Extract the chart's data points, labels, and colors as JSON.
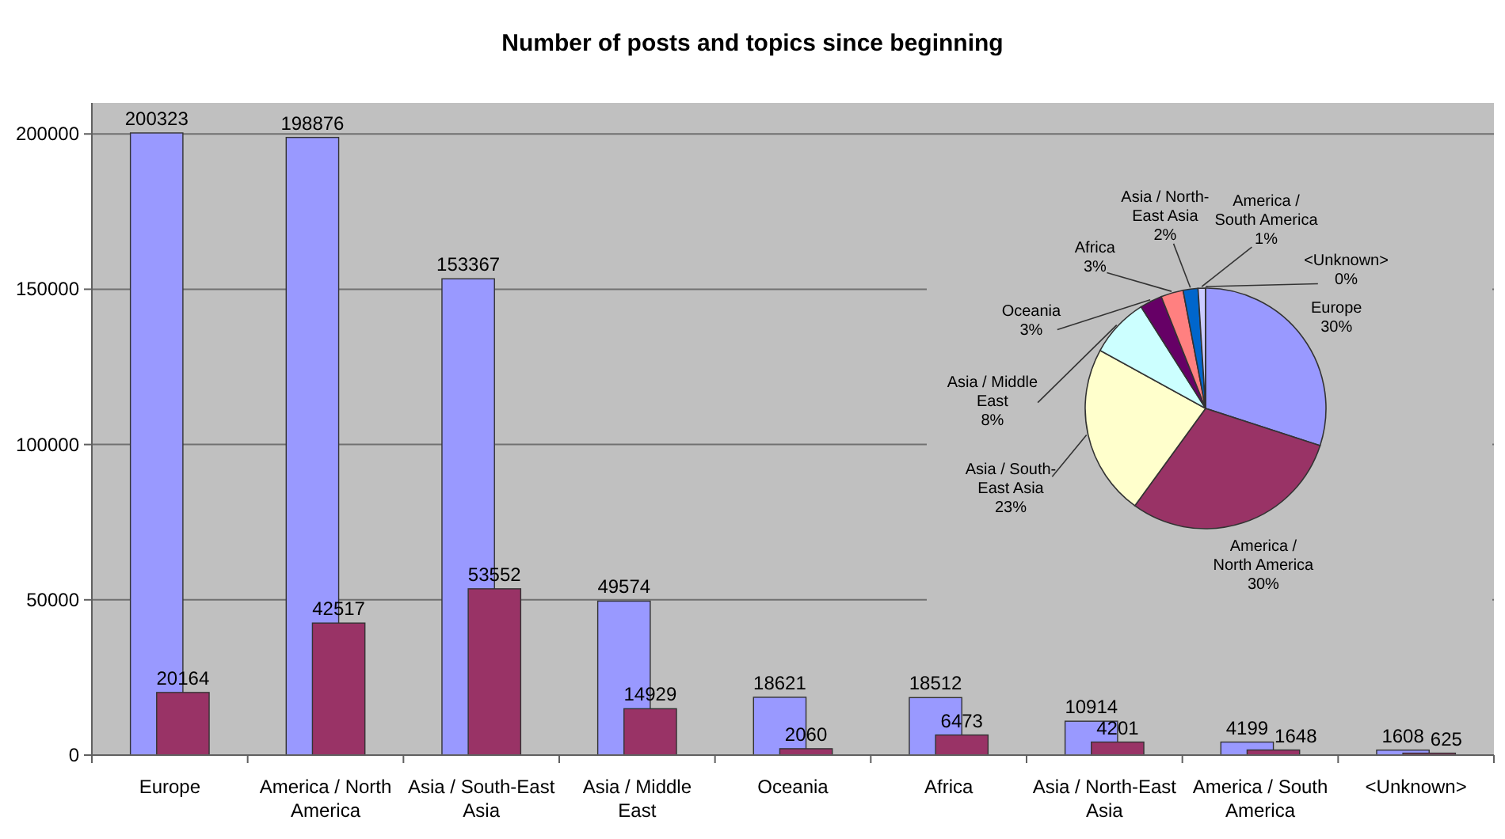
{
  "chart_data": [
    {
      "type": "bar",
      "title": "Number of posts and topics since beginning",
      "categories": [
        "Europe",
        "America / North America",
        "Asia / South-East Asia",
        "Asia / Middle East",
        "Oceania",
        "Africa",
        "Asia / North-East Asia",
        "America / South America",
        "<Unknown>"
      ],
      "series": [
        {
          "color": "#9999ff",
          "values": [
            200323,
            198876,
            153367,
            49574,
            18621,
            18512,
            10914,
            4199,
            1608
          ]
        },
        {
          "color": "#993366",
          "values": [
            20164,
            42517,
            53552,
            14929,
            2060,
            6473,
            4201,
            1648,
            625
          ]
        }
      ],
      "ylim": [
        0,
        210000
      ],
      "yticks": [
        0,
        50000,
        100000,
        150000,
        200000
      ],
      "grid": "y",
      "data_labels": true
    },
    {
      "type": "pie",
      "categories": [
        "Europe",
        "America / North America",
        "Asia / South-East Asia",
        "Asia / Middle East",
        "Oceania",
        "Africa",
        "Asia / North-East Asia",
        "America / South America",
        "<Unknown>"
      ],
      "values": [
        30,
        30,
        23,
        8,
        3,
        3,
        2,
        1,
        0
      ],
      "colors": [
        "#9999ff",
        "#993366",
        "#ffffcc",
        "#ccffff",
        "#660066",
        "#ff8080",
        "#0066cc",
        "#ccccff",
        "#000080"
      ],
      "value_labels": [
        "30%",
        "30%",
        "23%",
        "8%",
        "3%",
        "3%",
        "2%",
        "1%",
        "0%"
      ]
    }
  ]
}
